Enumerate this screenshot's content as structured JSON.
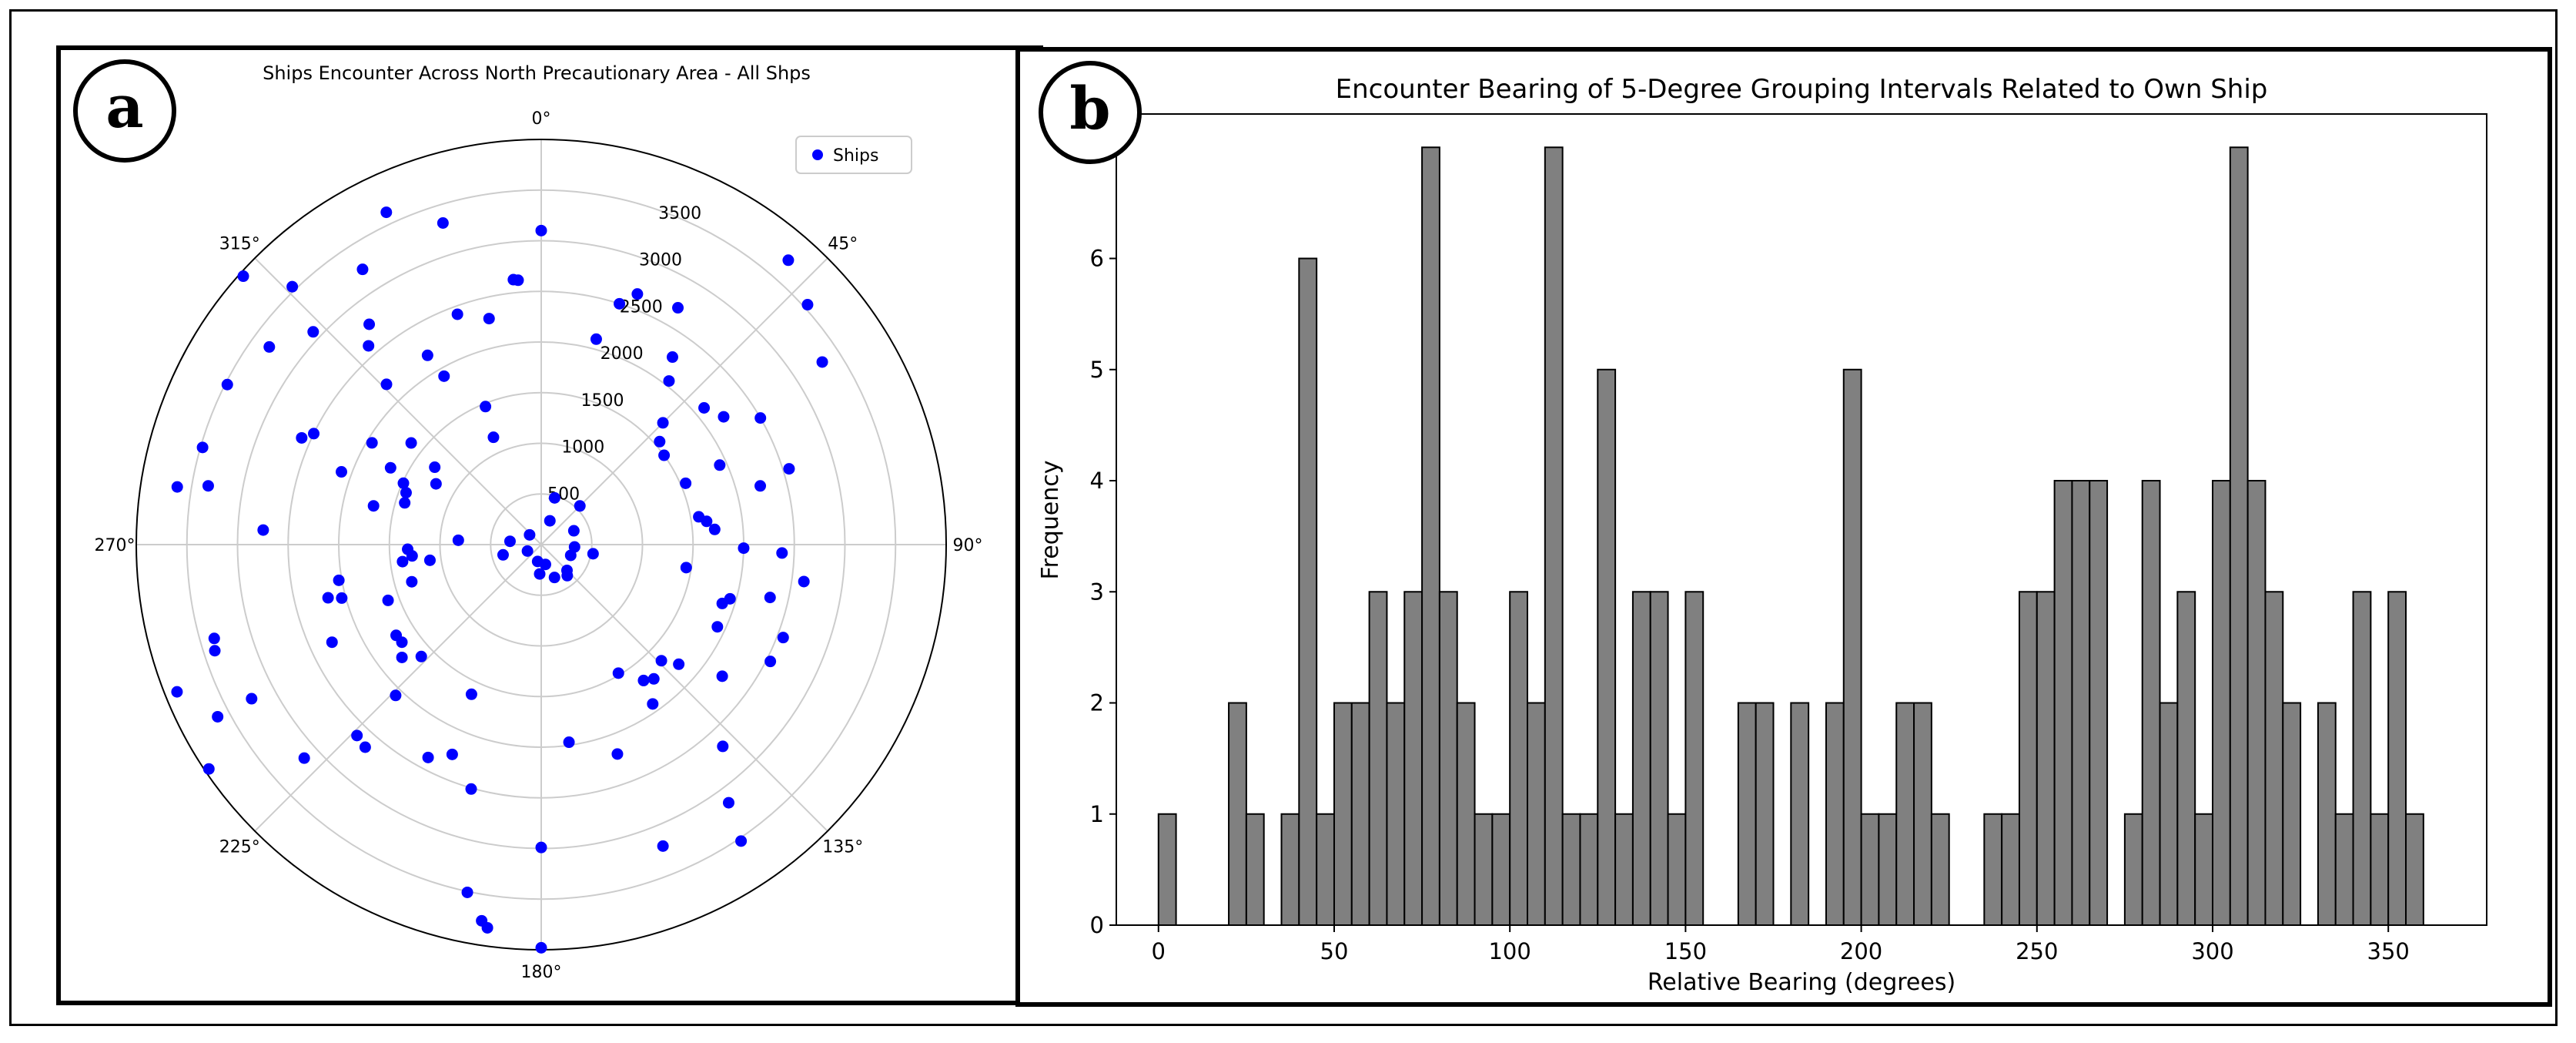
{
  "panels": {
    "a": {
      "label": "a"
    },
    "b": {
      "label": "b"
    }
  },
  "colors": {
    "points": "#0000ff",
    "bars": "#808080",
    "bar_edge": "#000000",
    "grid": "#cccccc"
  },
  "chart_data": [
    {
      "type": "scatter",
      "projection": "polar",
      "title": "Ships Encounter Across North Precautionary Area - All Shps",
      "legend": {
        "label": "Ships",
        "placement": "top-right"
      },
      "theta_direction": "clockwise",
      "theta_zero": "north",
      "theta_ticks": [
        "0°",
        "45°",
        "90°",
        "135°",
        "180°",
        "225°",
        "270°",
        "315°"
      ],
      "r_ticks": [
        "500",
        "1000",
        "1500",
        "2000",
        "2500",
        "3000",
        "3500"
      ],
      "r_tick_values": [
        500,
        1000,
        1500,
        2000,
        2500,
        3000,
        3500
      ],
      "rlim": [
        0,
        4000
      ],
      "series": [
        {
          "name": "Ships",
          "points": [
            [
              0,
              3100
            ],
            [
              335,
              3620
            ],
            [
              343,
              3320
            ],
            [
              21,
              2650
            ],
            [
              18,
              2500
            ],
            [
              15,
              2100
            ],
            [
              30,
              2700
            ],
            [
              35,
              2260
            ],
            [
              38,
              2050
            ],
            [
              41,
              3720
            ],
            [
              48,
              3540
            ],
            [
              57,
              3310
            ],
            [
              60,
              2500
            ],
            [
              55,
              2200
            ],
            [
              50,
              2100
            ],
            [
              45,
              1700
            ],
            [
              49,
              1550
            ],
            [
              54,
              1500
            ],
            [
              66,
              1930
            ],
            [
              67,
              1550
            ],
            [
              73,
              2560
            ],
            [
              75,
              2240
            ],
            [
              80,
              1580
            ],
            [
              82,
              1650
            ],
            [
              85,
              1720
            ],
            [
              92,
              2380
            ],
            [
              91,
              2000
            ],
            [
              98,
              2620
            ],
            [
              103,
              2320
            ],
            [
              99,
              1450
            ],
            [
              106,
              1940
            ],
            [
              108,
              1880
            ],
            [
              115,
              1920
            ],
            [
              111,
              2560
            ],
            [
              117,
              2540
            ],
            [
              126,
              2210
            ],
            [
              131,
              1800
            ],
            [
              134,
              1650
            ],
            [
              138,
              2680
            ],
            [
              149,
              1480
            ],
            [
              143,
              1680
            ],
            [
              145,
              1920
            ],
            [
              140,
              1730
            ],
            [
              144,
              3150
            ],
            [
              146,
              3530
            ],
            [
              158,
              3210
            ],
            [
              160,
              2200
            ],
            [
              172,
              1970
            ],
            [
              180,
              2990
            ],
            [
              180,
              3980
            ],
            [
              188,
              3820
            ],
            [
              189,
              3760
            ],
            [
              192,
              3510
            ],
            [
              196,
              2510
            ],
            [
              205,
              1630
            ],
            [
              203,
              2250
            ],
            [
              208,
              2380
            ],
            [
              221,
              2650
            ],
            [
              224,
              2620
            ],
            [
              228,
              3150
            ],
            [
              236,
              3960
            ],
            [
              242,
              3620
            ],
            [
              252,
              3390
            ],
            [
              254,
              3360
            ],
            [
              248,
              3880
            ],
            [
              242,
              3240
            ],
            [
              224,
              2070
            ],
            [
              231,
              1770
            ],
            [
              235,
              1680
            ],
            [
              238,
              1690
            ],
            [
              227,
              1620
            ],
            [
              245,
              2280
            ],
            [
              255,
              2040
            ],
            [
              256,
              2170
            ],
            [
              260,
              2030
            ],
            [
              250,
              1610
            ],
            [
              254,
              1330
            ],
            [
              262,
              1110
            ],
            [
              263,
              1380
            ],
            [
              265,
              1280
            ],
            [
              268,
              1320
            ],
            [
              273,
              820
            ],
            [
              273,
              2750
            ],
            [
              280,
              3340
            ],
            [
              279,
              3640
            ],
            [
              286,
              3480
            ],
            [
              297,
              3480
            ],
            [
              294,
              2590
            ],
            [
              296,
              2500
            ],
            [
              290,
              2100
            ],
            [
              283,
              1700
            ],
            [
              287,
              1410
            ],
            [
              291,
              1430
            ],
            [
              294,
              1490
            ],
            [
              297,
              1670
            ],
            [
              301,
              1950
            ],
            [
              308,
              1630
            ],
            [
              306,
              1300
            ],
            [
              300,
              1200
            ],
            [
              316,
              2200
            ],
            [
              319,
              2600
            ],
            [
              306,
              3320
            ],
            [
              313,
              3080
            ],
            [
              312,
              3960
            ],
            [
              316,
              3540
            ],
            [
              327,
              3240
            ],
            [
              322,
              2760
            ],
            [
              329,
              2180
            ],
            [
              330,
              1920
            ],
            [
              338,
              1470
            ],
            [
              336,
              1160
            ],
            [
              347,
              2290
            ],
            [
              354,
              2630
            ],
            [
              355,
              2620
            ],
            [
              340,
              2420
            ],
            [
              16,
              480
            ],
            [
              20,
              250
            ],
            [
              45,
              540
            ],
            [
              67,
              350
            ],
            [
              94,
              330
            ],
            [
              100,
              520
            ],
            [
              110,
              310
            ],
            [
              140,
              400
            ],
            [
              158,
              350
            ],
            [
              135,
              360
            ],
            [
              168,
              200
            ],
            [
              183,
              290
            ],
            [
              192,
              170
            ],
            [
              255,
              390
            ],
            [
              276,
              310
            ],
            [
              245,
              150
            ],
            [
              310,
              150
            ]
          ]
        }
      ]
    },
    {
      "type": "bar",
      "title": "Encounter Bearing of 5-Degree Grouping Intervals Related to Own Ship",
      "xlabel": "Relative Bearing (degrees)",
      "ylabel": "Frequency",
      "bin_width": 5,
      "bin_starts": [
        0,
        5,
        10,
        15,
        20,
        25,
        30,
        35,
        40,
        45,
        50,
        55,
        60,
        65,
        70,
        75,
        80,
        85,
        90,
        95,
        100,
        105,
        110,
        115,
        120,
        125,
        130,
        135,
        140,
        145,
        150,
        155,
        160,
        165,
        170,
        175,
        180,
        185,
        190,
        195,
        200,
        205,
        210,
        215,
        220,
        225,
        230,
        235,
        240,
        245,
        250,
        255,
        260,
        265,
        270,
        275,
        280,
        285,
        290,
        295,
        300,
        305,
        310,
        315,
        320,
        325,
        330,
        335,
        340,
        345,
        350,
        355
      ],
      "values": [
        1,
        0,
        0,
        0,
        2,
        1,
        0,
        1,
        6,
        1,
        2,
        2,
        3,
        2,
        3,
        7,
        3,
        2,
        1,
        1,
        3,
        2,
        7,
        1,
        1,
        5,
        1,
        3,
        3,
        1,
        3,
        0,
        0,
        2,
        2,
        0,
        2,
        0,
        2,
        5,
        1,
        1,
        2,
        2,
        1,
        0,
        0,
        1,
        1,
        3,
        3,
        4,
        4,
        4,
        0,
        1,
        4,
        2,
        3,
        1,
        4,
        7,
        4,
        3,
        2,
        0,
        2,
        1,
        3,
        1,
        3,
        1
      ],
      "xlim": [
        -12,
        378
      ],
      "ylim": [
        0,
        7.3
      ],
      "x_ticks": [
        0,
        50,
        100,
        150,
        200,
        250,
        300,
        350
      ],
      "x_tick_labels": [
        "0",
        "50",
        "100",
        "150",
        "200",
        "250",
        "300",
        "350"
      ],
      "y_ticks": [
        0,
        1,
        2,
        3,
        4,
        5,
        6
      ],
      "y_tick_labels": [
        "0",
        "1",
        "2",
        "3",
        "4",
        "5",
        "6"
      ]
    }
  ]
}
